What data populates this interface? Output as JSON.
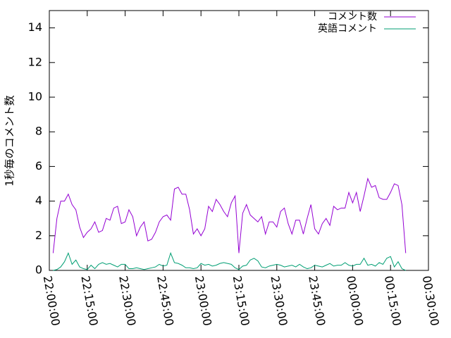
{
  "chart_data": {
    "type": "line",
    "ylabel": "1秒毎のコメント数",
    "x": [
      "22:01:30",
      "22:03:00",
      "22:04:30",
      "22:06:00",
      "22:07:30",
      "22:09:00",
      "22:10:30",
      "22:12:00",
      "22:13:30",
      "22:15:00",
      "22:16:30",
      "22:18:00",
      "22:19:30",
      "22:21:00",
      "22:22:30",
      "22:24:00",
      "22:25:30",
      "22:27:00",
      "22:28:30",
      "22:30:00",
      "22:31:30",
      "22:33:00",
      "22:34:30",
      "22:36:00",
      "22:37:30",
      "22:39:00",
      "22:40:30",
      "22:42:00",
      "22:43:30",
      "22:45:00",
      "22:46:30",
      "22:48:00",
      "22:49:30",
      "22:51:00",
      "22:52:30",
      "22:54:00",
      "22:55:30",
      "22:57:00",
      "22:58:30",
      "23:00:00",
      "23:01:30",
      "23:03:00",
      "23:04:30",
      "23:06:00",
      "23:07:30",
      "23:09:00",
      "23:10:30",
      "23:12:00",
      "23:13:30",
      "23:15:00",
      "23:16:30",
      "23:18:00",
      "23:19:30",
      "23:21:00",
      "23:22:30",
      "23:24:00",
      "23:25:30",
      "23:27:00",
      "23:28:30",
      "23:30:00",
      "23:31:30",
      "23:33:00",
      "23:34:30",
      "23:36:00",
      "23:37:30",
      "23:39:00",
      "23:40:30",
      "23:42:00",
      "23:43:30",
      "23:45:00",
      "23:46:30",
      "23:48:00",
      "23:49:30",
      "23:51:00",
      "23:52:30",
      "23:54:00",
      "23:55:30",
      "23:57:00",
      "23:58:30",
      "00:00:00",
      "00:01:30",
      "00:03:00",
      "00:04:30",
      "00:06:00",
      "00:07:30",
      "00:09:00",
      "00:10:30",
      "00:12:00",
      "00:13:30",
      "00:15:00",
      "00:16:30",
      "00:18:00",
      "00:19:30",
      "00:21:00"
    ],
    "series": [
      {
        "name": "コメント数",
        "color": "#9400d3",
        "values": [
          1.0,
          3.0,
          4.0,
          4.0,
          4.4,
          3.8,
          3.5,
          2.5,
          1.9,
          2.2,
          2.4,
          2.8,
          2.2,
          2.3,
          3.0,
          2.9,
          3.6,
          3.7,
          2.7,
          2.8,
          3.5,
          3.1,
          2.0,
          2.5,
          2.8,
          1.7,
          1.8,
          2.2,
          2.8,
          3.1,
          3.2,
          2.9,
          4.7,
          4.8,
          4.4,
          4.4,
          3.5,
          2.1,
          2.4,
          2.0,
          2.4,
          3.7,
          3.4,
          4.1,
          3.8,
          3.4,
          3.1,
          3.9,
          4.3,
          1.0,
          3.3,
          3.8,
          3.2,
          3.0,
          2.8,
          3.1,
          2.1,
          2.8,
          2.8,
          2.5,
          3.4,
          3.6,
          2.7,
          2.1,
          2.9,
          2.9,
          2.1,
          3.0,
          3.8,
          2.4,
          2.1,
          2.7,
          3.0,
          2.6,
          3.7,
          3.5,
          3.6,
          3.6,
          4.5,
          3.9,
          4.5,
          3.4,
          4.3,
          5.3,
          4.8,
          4.9,
          4.2,
          4.1,
          4.1,
          4.5,
          5.0,
          4.9,
          3.8,
          1.0
        ]
      },
      {
        "name": "英語コメント",
        "color": "#009e73",
        "values": [
          0.0,
          0.05,
          0.2,
          0.5,
          1.0,
          0.35,
          0.6,
          0.2,
          0.1,
          0.05,
          0.3,
          0.1,
          0.35,
          0.45,
          0.35,
          0.4,
          0.3,
          0.2,
          0.35,
          0.35,
          0.1,
          0.1,
          0.15,
          0.1,
          0.05,
          0.1,
          0.15,
          0.2,
          0.35,
          0.25,
          0.3,
          1.0,
          0.45,
          0.4,
          0.3,
          0.15,
          0.15,
          0.1,
          0.15,
          0.4,
          0.3,
          0.35,
          0.25,
          0.3,
          0.4,
          0.45,
          0.4,
          0.35,
          0.15,
          0.05,
          0.25,
          0.3,
          0.6,
          0.7,
          0.55,
          0.2,
          0.15,
          0.25,
          0.3,
          0.35,
          0.3,
          0.2,
          0.25,
          0.3,
          0.2,
          0.35,
          0.2,
          0.1,
          0.15,
          0.3,
          0.25,
          0.2,
          0.3,
          0.4,
          0.25,
          0.3,
          0.3,
          0.45,
          0.3,
          0.25,
          0.35,
          0.35,
          0.7,
          0.3,
          0.35,
          0.25,
          0.45,
          0.35,
          0.7,
          0.8,
          0.2,
          0.5,
          0.1,
          0.0
        ]
      }
    ],
    "xlim": [
      "22:00:00",
      "00:30:00"
    ],
    "xticks": [
      "22:00:00",
      "22:15:00",
      "22:30:00",
      "22:45:00",
      "23:00:00",
      "23:15:00",
      "23:30:00",
      "23:45:00",
      "00:00:00",
      "00:15:00",
      "00:30:00"
    ],
    "ylim": [
      0,
      15
    ],
    "yticks": [
      0,
      2,
      4,
      6,
      8,
      10,
      12,
      14
    ],
    "grid": false,
    "legend": "top-right"
  }
}
